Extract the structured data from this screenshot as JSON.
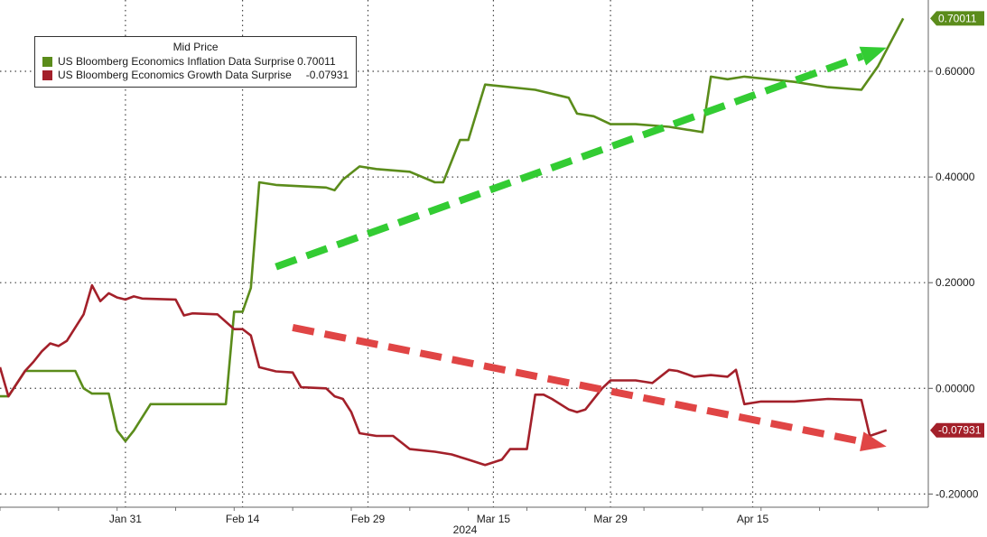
{
  "chart_data": {
    "type": "line",
    "title": "",
    "xlabel": "2024",
    "ylabel": "",
    "x_tick_labels": [
      "Jan 31",
      "Feb 14",
      "Feb 29",
      "Mar 15",
      "Mar 29",
      "Apr 15"
    ],
    "x_tick_dates": [
      "2024-01-31",
      "2024-02-14",
      "2024-02-29",
      "2024-03-15",
      "2024-03-29",
      "2024-04-15"
    ],
    "y_tick_labels": [
      "0.60000",
      "0.40000",
      "0.20000",
      "0.00000",
      "-0.20000"
    ],
    "y_ticks": [
      0.6,
      0.4,
      0.2,
      0.0,
      -0.2
    ],
    "ylim": [
      -0.225,
      0.735
    ],
    "xlim": [
      "2024-01-16",
      "2024-05-06"
    ],
    "grid": true,
    "y_axis_side": "right",
    "legend": {
      "title": "Mid Price",
      "placement": "top-left",
      "entries": [
        {
          "name": "US Bloomberg Economics Inflation Data Surprise",
          "value": "0.70011",
          "color": "#5b8c1b"
        },
        {
          "name": "US Bloomberg Economics Growth Data Surprise",
          "value": "-0.07931",
          "color": "#a3202a"
        }
      ]
    },
    "last_value_labels": [
      "0.70011",
      "-0.07931"
    ],
    "series": [
      {
        "name": "US Bloomberg Economics Inflation Data Surprise",
        "color": "#5b8c1b",
        "points": [
          [
            "2024-01-16",
            -0.015
          ],
          [
            "2024-01-17",
            -0.015
          ],
          [
            "2024-01-19",
            0.033
          ],
          [
            "2024-01-25",
            0.033
          ],
          [
            "2024-01-26",
            0.0
          ],
          [
            "2024-01-27",
            -0.01
          ],
          [
            "2024-01-29",
            -0.01
          ],
          [
            "2024-01-30",
            -0.08
          ],
          [
            "2024-01-31",
            -0.1
          ],
          [
            "2024-02-01",
            -0.08
          ],
          [
            "2024-02-03",
            -0.03
          ],
          [
            "2024-02-12",
            -0.03
          ],
          [
            "2024-02-13",
            0.145
          ],
          [
            "2024-02-14",
            0.145
          ],
          [
            "2024-02-15",
            0.19
          ],
          [
            "2024-02-16",
            0.39
          ],
          [
            "2024-02-18",
            0.385
          ],
          [
            "2024-02-24",
            0.38
          ],
          [
            "2024-02-25",
            0.375
          ],
          [
            "2024-02-26",
            0.395
          ],
          [
            "2024-02-28",
            0.42
          ],
          [
            "2024-03-01",
            0.415
          ],
          [
            "2024-03-05",
            0.41
          ],
          [
            "2024-03-08",
            0.39
          ],
          [
            "2024-03-09",
            0.39
          ],
          [
            "2024-03-11",
            0.47
          ],
          [
            "2024-03-12",
            0.47
          ],
          [
            "2024-03-14",
            0.575
          ],
          [
            "2024-03-20",
            0.565
          ],
          [
            "2024-03-24",
            0.55
          ],
          [
            "2024-03-25",
            0.52
          ],
          [
            "2024-03-27",
            0.515
          ],
          [
            "2024-03-29",
            0.5
          ],
          [
            "2024-04-01",
            0.5
          ],
          [
            "2024-04-05",
            0.495
          ],
          [
            "2024-04-09",
            0.485
          ],
          [
            "2024-04-10",
            0.59
          ],
          [
            "2024-04-12",
            0.585
          ],
          [
            "2024-04-14",
            0.59
          ],
          [
            "2024-04-20",
            0.58
          ],
          [
            "2024-04-24",
            0.57
          ],
          [
            "2024-04-28",
            0.565
          ],
          [
            "2024-04-30",
            0.61
          ],
          [
            "2024-05-03",
            0.70011
          ]
        ]
      },
      {
        "name": "US Bloomberg Economics Growth Data Surprise",
        "color": "#a3202a",
        "points": [
          [
            "2024-01-16",
            0.04
          ],
          [
            "2024-01-17",
            -0.015
          ],
          [
            "2024-01-19",
            0.033
          ],
          [
            "2024-01-20",
            0.05
          ],
          [
            "2024-01-21",
            0.07
          ],
          [
            "2024-01-22",
            0.085
          ],
          [
            "2024-01-23",
            0.08
          ],
          [
            "2024-01-24",
            0.09
          ],
          [
            "2024-01-26",
            0.14
          ],
          [
            "2024-01-27",
            0.195
          ],
          [
            "2024-01-28",
            0.165
          ],
          [
            "2024-01-29",
            0.18
          ],
          [
            "2024-01-30",
            0.172
          ],
          [
            "2024-01-31",
            0.168
          ],
          [
            "2024-02-01",
            0.174
          ],
          [
            "2024-02-02",
            0.17
          ],
          [
            "2024-02-06",
            0.168
          ],
          [
            "2024-02-07",
            0.138
          ],
          [
            "2024-02-08",
            0.142
          ],
          [
            "2024-02-11",
            0.14
          ],
          [
            "2024-02-13",
            0.112
          ],
          [
            "2024-02-14",
            0.112
          ],
          [
            "2024-02-15",
            0.1
          ],
          [
            "2024-02-16",
            0.04
          ],
          [
            "2024-02-18",
            0.032
          ],
          [
            "2024-02-20",
            0.03
          ],
          [
            "2024-02-21",
            0.002
          ],
          [
            "2024-02-24",
            0.0
          ],
          [
            "2024-02-25",
            -0.015
          ],
          [
            "2024-02-26",
            -0.02
          ],
          [
            "2024-02-27",
            -0.045
          ],
          [
            "2024-02-28",
            -0.085
          ],
          [
            "2024-03-01",
            -0.09
          ],
          [
            "2024-03-03",
            -0.09
          ],
          [
            "2024-03-05",
            -0.115
          ],
          [
            "2024-03-08",
            -0.12
          ],
          [
            "2024-03-10",
            -0.125
          ],
          [
            "2024-03-12",
            -0.135
          ],
          [
            "2024-03-14",
            -0.145
          ],
          [
            "2024-03-16",
            -0.135
          ],
          [
            "2024-03-17",
            -0.115
          ],
          [
            "2024-03-19",
            -0.115
          ],
          [
            "2024-03-20",
            -0.012
          ],
          [
            "2024-03-21",
            -0.012
          ],
          [
            "2024-03-22",
            -0.02
          ],
          [
            "2024-03-24",
            -0.04
          ],
          [
            "2024-03-25",
            -0.045
          ],
          [
            "2024-03-26",
            -0.04
          ],
          [
            "2024-03-28",
            0.0
          ],
          [
            "2024-03-29",
            0.015
          ],
          [
            "2024-04-01",
            0.015
          ],
          [
            "2024-04-03",
            0.01
          ],
          [
            "2024-04-05",
            0.035
          ],
          [
            "2024-04-06",
            0.033
          ],
          [
            "2024-04-08",
            0.022
          ],
          [
            "2024-04-10",
            0.025
          ],
          [
            "2024-04-12",
            0.022
          ],
          [
            "2024-04-13",
            0.035
          ],
          [
            "2024-04-14",
            -0.03
          ],
          [
            "2024-04-16",
            -0.025
          ],
          [
            "2024-04-20",
            -0.025
          ],
          [
            "2024-04-24",
            -0.02
          ],
          [
            "2024-04-28",
            -0.022
          ],
          [
            "2024-04-29",
            -0.09
          ],
          [
            "2024-05-01",
            -0.07931
          ]
        ]
      }
    ],
    "annotations": [
      {
        "type": "arrow",
        "style": "dashed",
        "color": "#33cc33",
        "from": [
          "2024-02-18",
          0.23
        ],
        "to": [
          "2024-05-01",
          0.645
        ]
      },
      {
        "type": "arrow",
        "style": "dashed",
        "color": "#e04545",
        "from": [
          "2024-02-20",
          0.115
        ],
        "to": [
          "2024-05-01",
          -0.11
        ]
      }
    ]
  }
}
